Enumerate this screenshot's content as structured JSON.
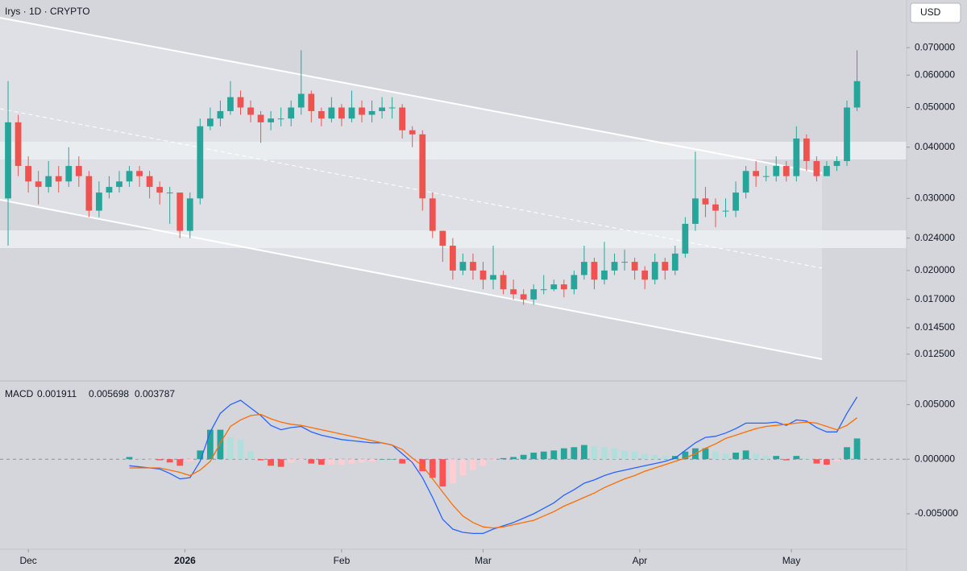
{
  "chart_data": [
    {
      "type": "candlestick",
      "title": "Irys · 1D · CRYPTO",
      "currency": "USD",
      "yscale": "log",
      "up_color": "#26a69a",
      "down_color": "#ef5350",
      "x": [
        0,
        2,
        4,
        6,
        8,
        10,
        12,
        14,
        16,
        18,
        20,
        22,
        24,
        26,
        28,
        30,
        32,
        34,
        36,
        38,
        40,
        42,
        44,
        46,
        48,
        50,
        52,
        54,
        56,
        58,
        60,
        62,
        64,
        66,
        68,
        70,
        72,
        74,
        76,
        78,
        80,
        82,
        84,
        86,
        88,
        90,
        92,
        94,
        96,
        98,
        100,
        102,
        104,
        106,
        108,
        110,
        112,
        114,
        116,
        118,
        120,
        122,
        124,
        126,
        128,
        130,
        132,
        134,
        136,
        138,
        140,
        142,
        144,
        146,
        148,
        150,
        152,
        154,
        156,
        158,
        160,
        162,
        164,
        166,
        168
      ],
      "open": [
        0.03,
        0.046,
        0.036,
        0.033,
        0.032,
        0.034,
        0.033,
        0.036,
        0.034,
        0.028,
        0.031,
        0.032,
        0.033,
        0.035,
        0.034,
        0.032,
        0.031,
        0.031,
        0.025,
        0.03,
        0.045,
        0.047,
        0.049,
        0.053,
        0.05,
        0.048,
        0.046,
        0.047,
        0.047,
        0.05,
        0.054,
        0.049,
        0.047,
        0.05,
        0.047,
        0.05,
        0.048,
        0.049,
        0.05,
        0.05,
        0.044,
        0.043,
        0.03,
        0.025,
        0.023,
        0.02,
        0.021,
        0.02,
        0.019,
        0.0195,
        0.018,
        0.0175,
        0.017,
        0.018,
        0.018,
        0.0185,
        0.018,
        0.0195,
        0.021,
        0.019,
        0.02,
        0.021,
        0.021,
        0.02,
        0.019,
        0.021,
        0.02,
        0.022,
        0.026,
        0.03,
        0.029,
        0.028,
        0.028,
        0.031,
        0.035,
        0.034,
        0.034,
        0.036,
        0.034,
        0.042,
        0.037,
        0.034,
        0.036,
        0.037,
        0.05
      ],
      "high": [
        0.058,
        0.048,
        0.038,
        0.035,
        0.037,
        0.036,
        0.04,
        0.038,
        0.035,
        0.033,
        0.034,
        0.035,
        0.036,
        0.036,
        0.035,
        0.033,
        0.032,
        0.031,
        0.031,
        0.047,
        0.05,
        0.052,
        0.058,
        0.055,
        0.052,
        0.049,
        0.049,
        0.05,
        0.052,
        0.069,
        0.055,
        0.05,
        0.053,
        0.051,
        0.055,
        0.052,
        0.052,
        0.053,
        0.053,
        0.051,
        0.045,
        0.044,
        0.031,
        0.025,
        0.024,
        0.022,
        0.022,
        0.021,
        0.023,
        0.02,
        0.019,
        0.018,
        0.0185,
        0.0195,
        0.019,
        0.019,
        0.02,
        0.023,
        0.0215,
        0.0235,
        0.022,
        0.0225,
        0.0215,
        0.0205,
        0.022,
        0.0215,
        0.023,
        0.027,
        0.039,
        0.032,
        0.03,
        0.03,
        0.033,
        0.036,
        0.037,
        0.036,
        0.038,
        0.037,
        0.045,
        0.043,
        0.038,
        0.037,
        0.038,
        0.052,
        0.069
      ],
      "low": [
        0.023,
        0.034,
        0.031,
        0.029,
        0.031,
        0.031,
        0.032,
        0.032,
        0.027,
        0.027,
        0.03,
        0.031,
        0.032,
        0.032,
        0.03,
        0.029,
        0.026,
        0.024,
        0.024,
        0.029,
        0.044,
        0.045,
        0.048,
        0.048,
        0.046,
        0.041,
        0.044,
        0.045,
        0.045,
        0.048,
        0.046,
        0.045,
        0.046,
        0.045,
        0.046,
        0.046,
        0.046,
        0.047,
        0.047,
        0.042,
        0.04,
        0.028,
        0.024,
        0.021,
        0.019,
        0.0195,
        0.019,
        0.018,
        0.018,
        0.0175,
        0.017,
        0.0165,
        0.0165,
        0.0175,
        0.0178,
        0.0172,
        0.0175,
        0.019,
        0.018,
        0.0185,
        0.0195,
        0.02,
        0.019,
        0.018,
        0.0185,
        0.019,
        0.0195,
        0.0215,
        0.025,
        0.027,
        0.0255,
        0.027,
        0.027,
        0.03,
        0.032,
        0.033,
        0.033,
        0.033,
        0.033,
        0.035,
        0.033,
        0.034,
        0.035,
        0.036,
        0.049
      ],
      "close": [
        0.046,
        0.036,
        0.033,
        0.032,
        0.034,
        0.033,
        0.036,
        0.034,
        0.028,
        0.031,
        0.032,
        0.033,
        0.035,
        0.034,
        0.032,
        0.031,
        0.031,
        0.025,
        0.03,
        0.045,
        0.047,
        0.049,
        0.053,
        0.05,
        0.048,
        0.046,
        0.047,
        0.047,
        0.05,
        0.054,
        0.049,
        0.047,
        0.05,
        0.047,
        0.05,
        0.048,
        0.049,
        0.05,
        0.05,
        0.044,
        0.043,
        0.03,
        0.025,
        0.023,
        0.02,
        0.021,
        0.02,
        0.019,
        0.0195,
        0.018,
        0.0175,
        0.017,
        0.018,
        0.018,
        0.0185,
        0.018,
        0.0195,
        0.021,
        0.019,
        0.02,
        0.021,
        0.021,
        0.02,
        0.019,
        0.021,
        0.02,
        0.022,
        0.026,
        0.03,
        0.029,
        0.028,
        0.028,
        0.031,
        0.035,
        0.034,
        0.034,
        0.036,
        0.034,
        0.042,
        0.037,
        0.034,
        0.036,
        0.037,
        0.05,
        0.058
      ],
      "xlim": [
        -1.6,
        177
      ],
      "xticks": [
        {
          "value": 4,
          "label": "Dec"
        },
        {
          "value": 35,
          "label": "2026"
        },
        {
          "value": 66,
          "label": "Feb"
        },
        {
          "value": 94,
          "label": "Mar"
        },
        {
          "value": 125,
          "label": "Apr"
        },
        {
          "value": 155,
          "label": "May"
        }
      ],
      "ylim": [
        0.0109,
        0.0915
      ],
      "yticks": [
        {
          "value": 0.07,
          "label": "0.070000"
        },
        {
          "value": 0.06,
          "label": "0.060000"
        },
        {
          "value": 0.05,
          "label": "0.050000"
        },
        {
          "value": 0.04,
          "label": "0.040000"
        },
        {
          "value": 0.03,
          "label": "0.030000"
        },
        {
          "value": 0.024,
          "label": "0.024000"
        },
        {
          "value": 0.02,
          "label": "0.020000"
        },
        {
          "value": 0.017,
          "label": "0.017000"
        },
        {
          "value": 0.0145,
          "label": "0.014500"
        },
        {
          "value": 0.0125,
          "label": "0.012500"
        }
      ]
    },
    {
      "type": "macd",
      "title": "MACD",
      "header_values": [
        0.001911,
        0.005698,
        0.003787
      ],
      "ylim": [
        -0.0081,
        0.0068
      ],
      "yticks": [
        {
          "value": 0.005,
          "label": "0.005000"
        },
        {
          "value": 0,
          "label": "0.000000"
        },
        {
          "value": -0.005,
          "label": "-0.005000"
        }
      ],
      "series": [
        {
          "kind": "histogram",
          "color": "#26a69a",
          "values": [
            null,
            null,
            null,
            null,
            null,
            null,
            null,
            null,
            null,
            null,
            null,
            null,
            0.0002,
            0.0001,
            0,
            -0.0001,
            -0.0003,
            -0.0006,
            -0.0002,
            0.0008,
            0.0027,
            0.0027,
            0.002,
            0.0018,
            0.0007,
            -0.0001,
            -0.0006,
            -0.0007,
            -0.0003,
            -0.0001,
            -0.0004,
            -0.0005,
            -0.0005,
            -0.0005,
            -0.0004,
            -0.0003,
            -0.0002,
            0,
            0,
            -0.0004,
            -0.0004,
            -0.0011,
            -0.0017,
            -0.0025,
            -0.0022,
            -0.0015,
            -0.001,
            -0.0006,
            -0.0001,
            0.0001,
            0.0002,
            0.0004,
            0.0006,
            0.0007,
            0.0008,
            0.001,
            0.0011,
            0.0013,
            0.0012,
            0.0011,
            0.001,
            0.0008,
            0.0007,
            0.0005,
            0.0004,
            0.0003,
            0.0003,
            0.0007,
            0.001,
            0.001,
            0.0007,
            0.0005,
            0.0006,
            0.0008,
            0.0005,
            0.0003,
            0.0003,
            -0.0001,
            0.0003,
            0.0001,
            -0.0004,
            -0.0005,
            -0.0002,
            0.0011,
            0.0019
          ]
        },
        {
          "kind": "line",
          "color": "#2962ff",
          "values": [
            null,
            null,
            null,
            null,
            null,
            null,
            null,
            null,
            null,
            null,
            null,
            null,
            -0.0006,
            -0.0007,
            -0.0008,
            -0.0009,
            -0.0013,
            -0.0018,
            -0.0017,
            -0.0002,
            0.0025,
            0.0042,
            0.005,
            0.0054,
            0.0047,
            0.004,
            0.0031,
            0.0027,
            0.0029,
            0.003,
            0.0025,
            0.0022,
            0.002,
            0.0018,
            0.0017,
            0.0016,
            0.0015,
            0.0015,
            0.0013,
            0.0005,
            -0.0003,
            -0.0017,
            -0.0035,
            -0.0055,
            -0.0064,
            -0.0067,
            -0.0068,
            -0.0068,
            -0.0064,
            -0.0061,
            -0.0058,
            -0.0054,
            -0.005,
            -0.0045,
            -0.004,
            -0.0033,
            -0.0028,
            -0.0022,
            -0.0019,
            -0.0015,
            -0.0012,
            -0.001,
            -0.0008,
            -0.0006,
            -0.0004,
            -0.0002,
            0.0001,
            0.0008,
            0.0015,
            0.002,
            0.0021,
            0.0024,
            0.0028,
            0.0033,
            0.0033,
            0.0033,
            0.0034,
            0.0031,
            0.0036,
            0.0035,
            0.0029,
            0.0025,
            0.0025,
            0.0042,
            0.0057
          ]
        },
        {
          "kind": "line",
          "color": "#ff6d00",
          "values": [
            null,
            null,
            null,
            null,
            null,
            null,
            null,
            null,
            null,
            null,
            null,
            null,
            -0.0008,
            -0.0008,
            -0.0008,
            -0.0008,
            -0.001,
            -0.0012,
            -0.0015,
            -0.001,
            -0.0002,
            0.0015,
            0.003,
            0.0036,
            0.004,
            0.0041,
            0.0037,
            0.0034,
            0.0032,
            0.0031,
            0.0029,
            0.0027,
            0.0025,
            0.0023,
            0.0021,
            0.0019,
            0.0017,
            0.0015,
            0.0013,
            0.0009,
            0.0001,
            -0.0006,
            -0.0018,
            -0.003,
            -0.0042,
            -0.0052,
            -0.0058,
            -0.0062,
            -0.0063,
            -0.0062,
            -0.006,
            -0.0058,
            -0.0056,
            -0.0052,
            -0.0048,
            -0.0043,
            -0.0039,
            -0.0035,
            -0.0031,
            -0.0026,
            -0.0022,
            -0.0018,
            -0.0015,
            -0.0011,
            -0.0008,
            -0.0005,
            -0.0002,
            0.0001,
            0.0005,
            0.001,
            0.0014,
            0.0019,
            0.0022,
            0.0025,
            0.0028,
            0.003,
            0.0031,
            0.0032,
            0.0033,
            0.0034,
            0.0033,
            0.003,
            0.0027,
            0.0031,
            0.0038
          ]
        }
      ]
    }
  ]
}
